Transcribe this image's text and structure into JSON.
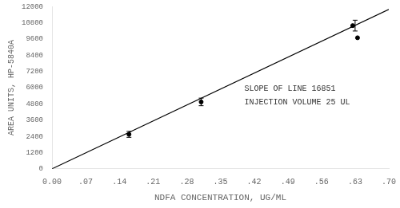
{
  "chart_data": {
    "type": "scatter",
    "xlabel": "NDFA CONCENTRATION, UG/ML",
    "ylabel": "AREA UNITS, HP-5840A",
    "xlim": [
      0.0,
      0.7
    ],
    "ylim": [
      0,
      12000
    ],
    "xticks": [
      {
        "value": 0.0,
        "label": "0.00"
      },
      {
        "value": 0.07,
        "label": ".07"
      },
      {
        "value": 0.14,
        "label": ".14"
      },
      {
        "value": 0.21,
        "label": ".21"
      },
      {
        "value": 0.28,
        "label": ".28"
      },
      {
        "value": 0.35,
        "label": ".35"
      },
      {
        "value": 0.42,
        "label": ".42"
      },
      {
        "value": 0.49,
        "label": ".49"
      },
      {
        "value": 0.56,
        "label": ".56"
      },
      {
        "value": 0.63,
        "label": ".63"
      },
      {
        "value": 0.7,
        "label": ".70"
      }
    ],
    "yticks": [
      0,
      1200,
      2400,
      3600,
      4800,
      6000,
      7200,
      8400,
      9600,
      10800,
      12000
    ],
    "grid": false,
    "series": [
      {
        "type": "line",
        "color": "#000000",
        "x": [
          0.0,
          0.7
        ],
        "values": [
          0.0,
          11795.7
        ]
      },
      {
        "type": "scatter",
        "color": "#000000",
        "x": [
          0.16,
          0.31,
          0.625,
          0.635
        ],
        "values": [
          2550,
          4950,
          10600,
          9700
        ]
      },
      {
        "type": "errorbar",
        "color": "#000000",
        "x": [
          0.16,
          0.31,
          0.63
        ],
        "values": [
          2550,
          4950,
          10600
        ],
        "errors": [
          220,
          280,
          400
        ]
      }
    ],
    "annotations": [
      {
        "text": "SLOPE OF LINE 16851",
        "x": 0.4,
        "y": 5900
      },
      {
        "text": "INJECTION VOLUME 25 UL",
        "x": 0.4,
        "y": 4950
      }
    ]
  }
}
